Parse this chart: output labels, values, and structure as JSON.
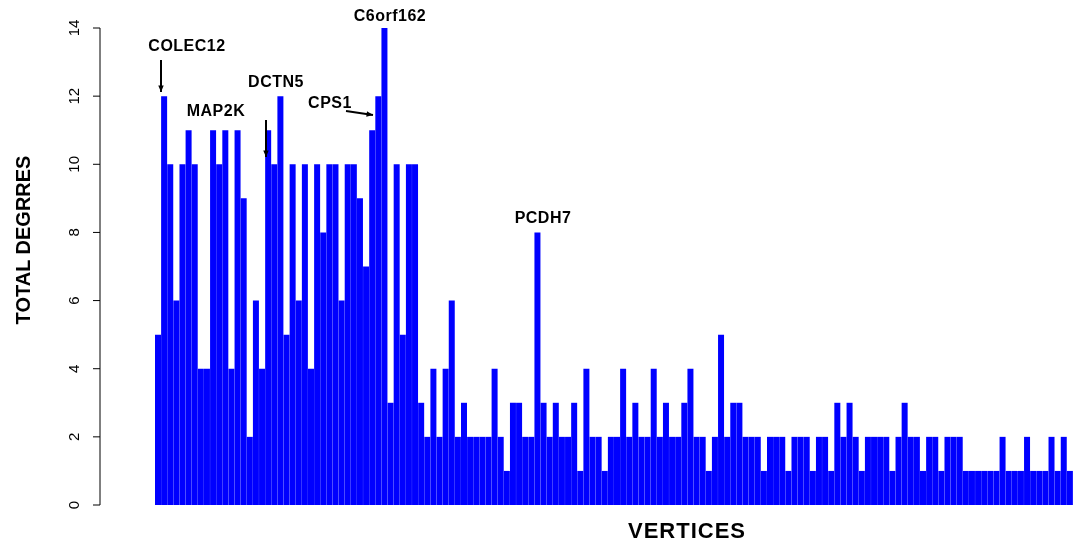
{
  "chart_data": {
    "type": "bar",
    "xlabel": "VERTICES",
    "ylabel": "TOTAL DEGRRES",
    "color": "#0000ff",
    "ylim": [
      0,
      14
    ],
    "yticks": [
      0,
      2,
      4,
      6,
      8,
      10,
      12,
      14
    ],
    "annotations": [
      "COLEC12",
      "MAP2K",
      "DCTN5",
      "CPS1",
      "C6orf162",
      "PCDH7"
    ],
    "categories": [
      null,
      null,
      null,
      null,
      null,
      null,
      null,
      null,
      null,
      null,
      null,
      null,
      null,
      null,
      null,
      null,
      null,
      null,
      null,
      null,
      null,
      null,
      null,
      null,
      null,
      null,
      null,
      null,
      null,
      null,
      null,
      null,
      null,
      null,
      null,
      null,
      null,
      null,
      null,
      null,
      null,
      null,
      null,
      null,
      null,
      null,
      null,
      null,
      null,
      null,
      null,
      null,
      null,
      null,
      null,
      null,
      null,
      null,
      null,
      null,
      null,
      null,
      null,
      null,
      null,
      null,
      null,
      null,
      null,
      null,
      null,
      null,
      null,
      null,
      null,
      null,
      null,
      null,
      null,
      null,
      null,
      null,
      null,
      null,
      null,
      null,
      null,
      null,
      null,
      null,
      null,
      null,
      null,
      null,
      null,
      null,
      null,
      null,
      null,
      null,
      null,
      null,
      null,
      null,
      null,
      null,
      null,
      null,
      null,
      null,
      null,
      null,
      null,
      null,
      null,
      null,
      null,
      null,
      null,
      null,
      null,
      null,
      null,
      null,
      null,
      null,
      null,
      null,
      null,
      null,
      null,
      null,
      null,
      null,
      null,
      null,
      null,
      null,
      null,
      null,
      null,
      null,
      null,
      null,
      null,
      null,
      null,
      null,
      null,
      null
    ],
    "values": [
      5,
      12,
      10,
      6,
      10,
      11,
      10,
      4,
      4,
      11,
      10,
      11,
      4,
      11,
      9,
      2,
      6,
      4,
      11,
      10,
      12,
      5,
      10,
      6,
      10,
      4,
      10,
      8,
      10,
      10,
      6,
      10,
      10,
      9,
      7,
      11,
      12,
      14,
      3,
      10,
      5,
      10,
      10,
      3,
      2,
      4,
      2,
      4,
      6,
      2,
      3,
      2,
      2,
      2,
      2,
      4,
      2,
      1,
      3,
      3,
      2,
      2,
      8,
      3,
      2,
      3,
      2,
      2,
      3,
      1,
      4,
      2,
      2,
      1,
      2,
      2,
      4,
      2,
      3,
      2,
      2,
      4,
      2,
      3,
      2,
      2,
      3,
      4,
      2,
      2,
      1,
      2,
      5,
      2,
      3,
      3,
      2,
      2,
      2,
      1,
      2,
      2,
      2,
      1,
      2,
      2,
      2,
      1,
      2,
      2,
      1,
      3,
      2,
      3,
      2,
      1,
      2,
      2,
      2,
      2,
      1,
      2,
      3,
      2,
      2,
      1,
      2,
      2,
      1,
      2,
      2,
      2,
      1,
      1,
      1,
      1,
      1,
      1,
      2,
      1,
      1,
      1,
      2,
      1,
      1,
      1,
      2,
      1,
      2,
      1
    ]
  }
}
